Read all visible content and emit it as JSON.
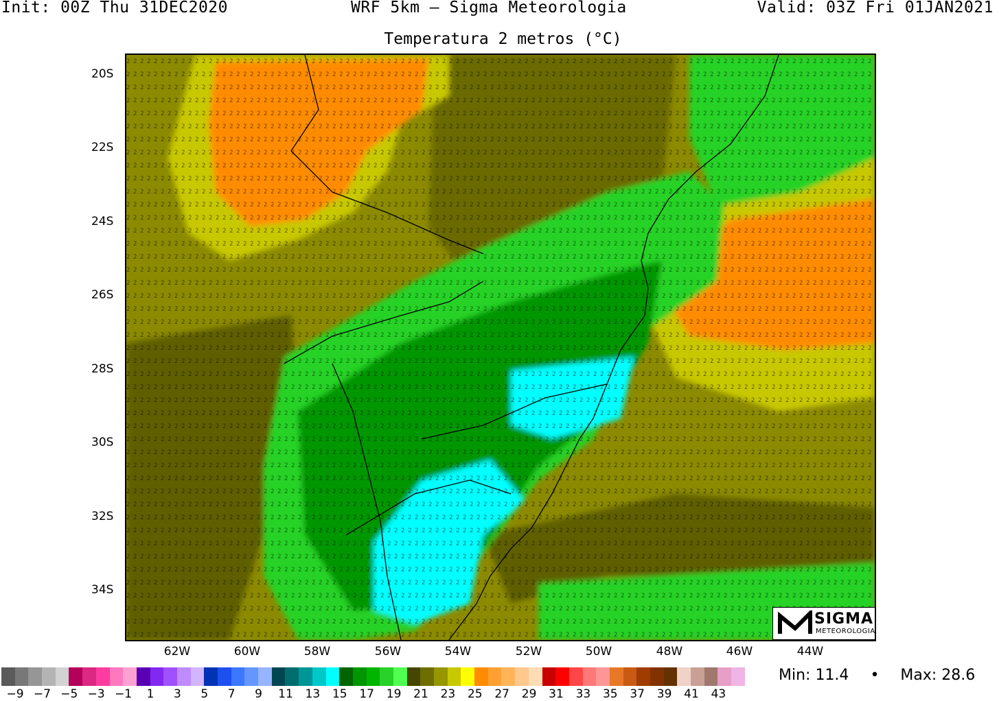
{
  "header": {
    "init": "Init: 00Z Thu 31DEC2020",
    "model": "WRF 5km – Sigma Meteorologia",
    "valid": "Valid: 03Z Fri 01JAN2021"
  },
  "title": "Temperatura 2 metros (°C)",
  "lat_labels": [
    "20S",
    "22S",
    "24S",
    "26S",
    "28S",
    "30S",
    "32S",
    "34S"
  ],
  "lon_labels": [
    "62W",
    "60W",
    "58W",
    "56W",
    "54W",
    "52W",
    "50W",
    "48W",
    "46W",
    "44W"
  ],
  "logo": {
    "name": "SIGMA",
    "sub": "METEOROLOGIA"
  },
  "colorbar": {
    "colors": [
      "#5a5a5a",
      "#787878",
      "#969696",
      "#b4b4b4",
      "#d2d2d2",
      "#b4005a",
      "#dc2882",
      "#ff3ca0",
      "#ff78be",
      "#ffa0d2",
      "#5a00b4",
      "#8228f0",
      "#a050ff",
      "#be8cff",
      "#d2b4ff",
      "#0032b4",
      "#1e50f0",
      "#3c78ff",
      "#6496ff",
      "#96b4ff",
      "#004650",
      "#006e6e",
      "#009696",
      "#00c8c8",
      "#00ffff",
      "#006400",
      "#009600",
      "#00b400",
      "#28d228",
      "#50ff50",
      "#464600",
      "#6e6e00",
      "#969600",
      "#c8c800",
      "#ffff00",
      "#ff8c00",
      "#ffa032",
      "#ffb45a",
      "#ffc88c",
      "#ffdcb4",
      "#c80000",
      "#ff0000",
      "#ff4646",
      "#ff7878",
      "#ff9696",
      "#e67828",
      "#c85a14",
      "#a03c00",
      "#823200",
      "#643200",
      "#f0d2c8",
      "#c8a096",
      "#a0786e",
      "#e6a0c8",
      "#f0b4e6"
    ],
    "labels": [
      "−9",
      "−7",
      "−5",
      "−3",
      "−1",
      "1",
      "3",
      "5",
      "7",
      "9",
      "11",
      "13",
      "15",
      "17",
      "19",
      "21",
      "23",
      "25",
      "27",
      "29",
      "31",
      "33",
      "35",
      "37",
      "39",
      "41",
      "43"
    ]
  },
  "stats": {
    "min": "Min: 11.4",
    "sep": "•",
    "max": "Max: 28.6"
  }
}
